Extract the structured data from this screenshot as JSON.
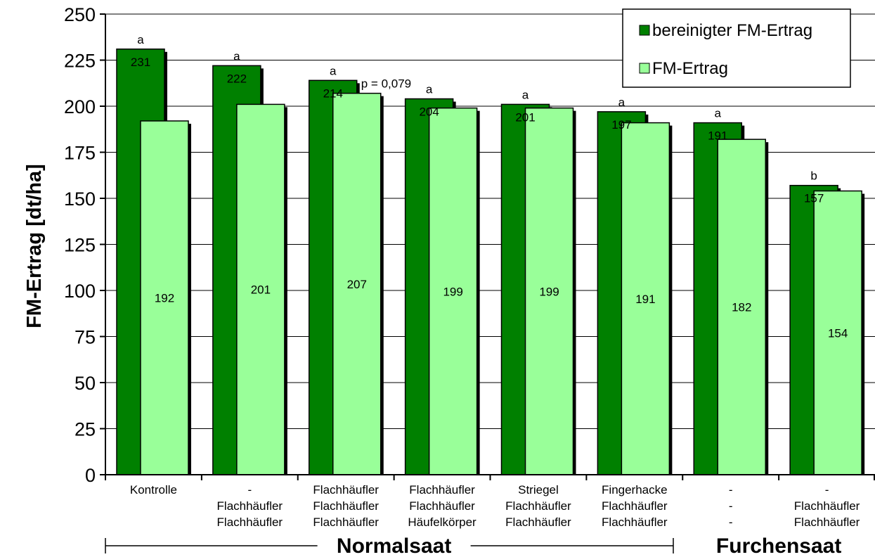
{
  "chart_data": {
    "type": "bar",
    "ylabel": "FM-Ertrag [dt/ha]",
    "ylim": [
      0,
      250
    ],
    "yticks": [
      0,
      25,
      50,
      75,
      100,
      125,
      150,
      175,
      200,
      225,
      250
    ],
    "grid": true,
    "legend_position": "top-right",
    "categories": [
      [
        "Kontrolle"
      ],
      [
        "-",
        "Flachhäufler",
        "Flachhäufler"
      ],
      [
        "Flachhäufler",
        "Flachhäufler",
        "Flachhäufler"
      ],
      [
        "Flachhäufler",
        "Flachhäufler",
        "Häufelkörper"
      ],
      [
        "Striegel",
        "Flachhäufler",
        "Flachhäufler"
      ],
      [
        "Fingerhacke",
        "Flachhäufler",
        "Flachhäufler"
      ],
      [
        "-",
        "-",
        "-"
      ],
      [
        "-",
        "Flachhäufler",
        "Flachhäufler"
      ]
    ],
    "series": [
      {
        "name": "bereinigter FM-Ertrag",
        "color": "#008000",
        "values": [
          231,
          222,
          214,
          204,
          201,
          197,
          191,
          157
        ],
        "labels": [
          "231",
          "222",
          "214",
          "204",
          "201",
          "197",
          "191",
          "157"
        ],
        "significance": [
          "a",
          "a",
          "a",
          "a",
          "a",
          "a",
          "a",
          "b"
        ]
      },
      {
        "name": "FM-Ertrag",
        "color": "#99FF99",
        "values": [
          192,
          201,
          207,
          199,
          199,
          191,
          182,
          154
        ],
        "labels": [
          "192",
          "201",
          "207",
          "199",
          "199",
          "191",
          "182",
          "154"
        ]
      }
    ],
    "annotations": [
      {
        "text": "p = 0,079",
        "category_index": 2
      }
    ],
    "groups": [
      {
        "label": "Normalsaat",
        "from": 0,
        "to": 5
      },
      {
        "label": "Furchensaat",
        "from": 6,
        "to": 7
      }
    ]
  }
}
